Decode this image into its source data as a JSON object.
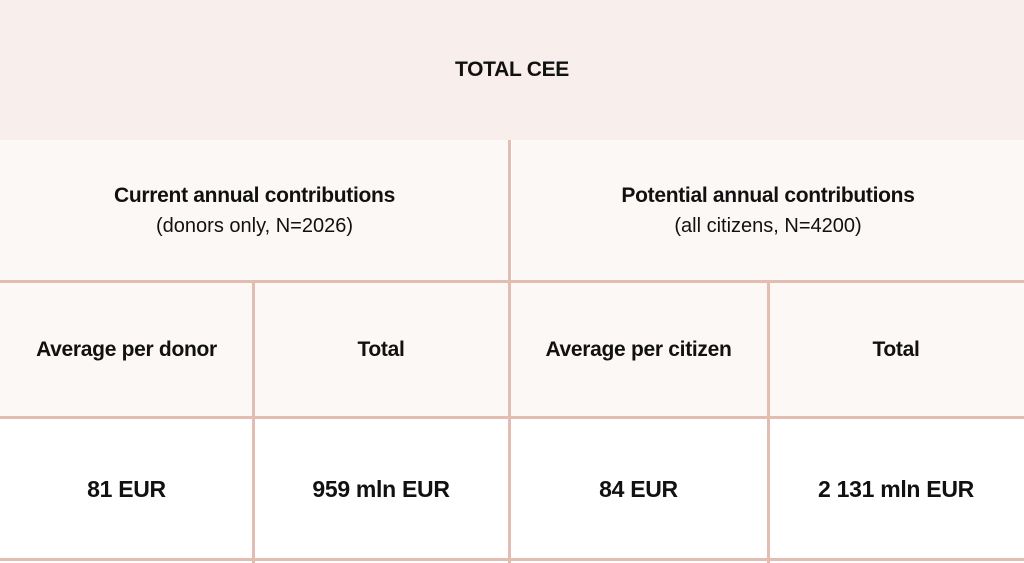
{
  "table": {
    "title": "TOTAL CEE",
    "groups": [
      {
        "title": "Current annual contributions",
        "subtitle": "(donors only, N=2026)"
      },
      {
        "title": "Potential annual contributions",
        "subtitle": "(all citizens, N=4200)"
      }
    ],
    "columns": [
      "Average per donor",
      "Total",
      "Average per citizen",
      "Total"
    ],
    "values": [
      "81 EUR",
      "959 mln EUR",
      "84 EUR",
      "2 131 mln EUR"
    ]
  }
}
